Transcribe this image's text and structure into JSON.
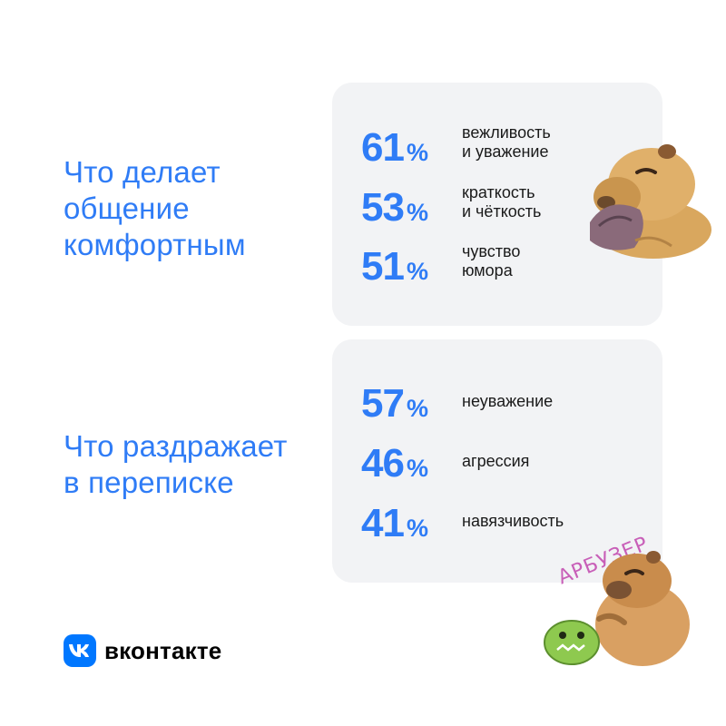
{
  "chart_data": [
    {
      "type": "table",
      "title_lines": [
        "Что делает",
        "общение",
        "комфортным"
      ],
      "items": [
        {
          "value": 61,
          "label_lines": [
            "вежливость",
            "и уважение"
          ]
        },
        {
          "value": 53,
          "label_lines": [
            "краткость",
            "и чёткость"
          ]
        },
        {
          "value": 51,
          "label_lines": [
            "чувство",
            "юмора"
          ]
        }
      ]
    },
    {
      "type": "table",
      "title_lines": [
        "Что раздражает",
        "в переписке"
      ],
      "items": [
        {
          "value": 57,
          "label_lines": [
            "неуважение"
          ]
        },
        {
          "value": 46,
          "label_lines": [
            "агрессия"
          ]
        },
        {
          "value": 41,
          "label_lines": [
            "навязчивость"
          ]
        }
      ]
    }
  ],
  "percent_sign": "%",
  "brand": {
    "name": "вконтакте",
    "logo_icon": "vk-logo-icon",
    "color": "#0077ff"
  },
  "accent_color": "#2f7cf6",
  "sticker_text": "АРБУЗЕР",
  "stickers": [
    "capybara-sticker-icon",
    "capybara-with-watermelon-sticker-icon"
  ]
}
